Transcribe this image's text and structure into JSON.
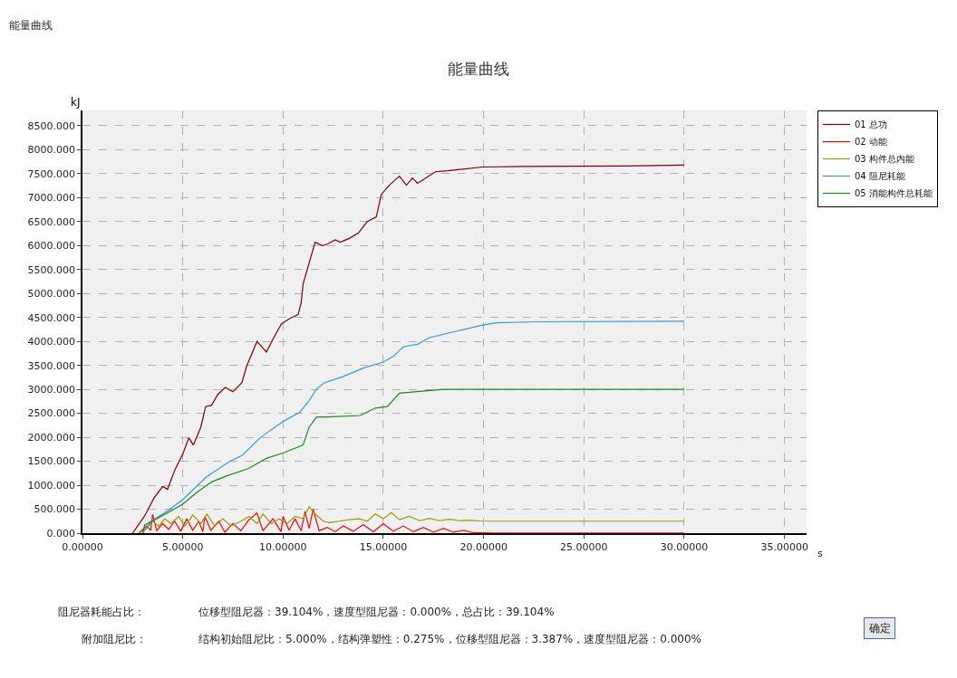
{
  "chart_data": {
    "type": "line",
    "title": "能量曲线",
    "xlabel": "s",
    "ylabel": "kJ",
    "xlim": [
      0,
      36.1
    ],
    "ylim": [
      0,
      8820
    ],
    "xticks": [
      {
        "value": 0,
        "label": "0.00000"
      },
      {
        "value": 5,
        "label": "5.00000"
      },
      {
        "value": 10,
        "label": "10.00000"
      },
      {
        "value": 15,
        "label": "15.00000"
      },
      {
        "value": 20,
        "label": "20.00000"
      },
      {
        "value": 25,
        "label": "25.00000"
      },
      {
        "value": 30,
        "label": "30.00000"
      },
      {
        "value": 35,
        "label": "35.00000"
      }
    ],
    "yticks": [
      {
        "value": 0,
        "label": "0.000"
      },
      {
        "value": 500,
        "label": "500.000"
      },
      {
        "value": 1000,
        "label": "1000.000"
      },
      {
        "value": 1500,
        "label": "1500.000"
      },
      {
        "value": 2000,
        "label": "2000.000"
      },
      {
        "value": 2500,
        "label": "2500.000"
      },
      {
        "value": 3000,
        "label": "3000.000"
      },
      {
        "value": 3500,
        "label": "3500.000"
      },
      {
        "value": 4000,
        "label": "4000.000"
      },
      {
        "value": 4500,
        "label": "4500.000"
      },
      {
        "value": 5000,
        "label": "5000.000"
      },
      {
        "value": 5500,
        "label": "5500.000"
      },
      {
        "value": 6000,
        "label": "6000.000"
      },
      {
        "value": 6500,
        "label": "6500.000"
      },
      {
        "value": 7000,
        "label": "7000.000"
      },
      {
        "value": 7500,
        "label": "7500.000"
      },
      {
        "value": 8000,
        "label": "8000.000"
      },
      {
        "value": 8500,
        "label": "8500.000"
      }
    ],
    "grid": true,
    "legend": "top right",
    "marker": "none",
    "line_style": "solid",
    "series": [
      {
        "name": "01 总功",
        "color": "#800000",
        "x": [
          2.5,
          3.1,
          3.56,
          4.0,
          4.24,
          4.6,
          5.0,
          5.3,
          5.53,
          5.9,
          6.14,
          6.44,
          6.74,
          7.12,
          7.5,
          7.95,
          8.18,
          8.7,
          9.17,
          9.55,
          9.92,
          10.38,
          10.75,
          10.9,
          11.0,
          11.6,
          11.95,
          12.2,
          12.6,
          12.85,
          13.3,
          13.75,
          14.2,
          14.65,
          14.9,
          15.3,
          15.8,
          16.15,
          16.45,
          16.7,
          17.6,
          18.2,
          19.95,
          22.0,
          27.0,
          30.0
        ],
        "values": [
          0,
          360,
          730,
          975,
          915,
          1315,
          1650,
          1990,
          1840,
          2210,
          2640,
          2670,
          2890,
          3040,
          2950,
          3140,
          3480,
          4000,
          3780,
          4090,
          4370,
          4490,
          4560,
          4800,
          5200,
          6070,
          6000,
          6030,
          6120,
          6070,
          6150,
          6260,
          6500,
          6600,
          7070,
          7260,
          7450,
          7260,
          7410,
          7300,
          7540,
          7560,
          7640,
          7650,
          7660,
          7680
        ]
      },
      {
        "name": "02 动能",
        "color": "#ff0000",
        "x": [
          2.8,
          3.2,
          3.4,
          3.5,
          3.7,
          4.0,
          4.3,
          4.6,
          4.9,
          5.2,
          5.5,
          5.8,
          6.0,
          6.1,
          6.4,
          6.8,
          7.1,
          7.5,
          7.9,
          8.3,
          8.7,
          9.0,
          9.5,
          9.9,
          10.0,
          10.3,
          10.6,
          10.9,
          11.1,
          11.3,
          11.5,
          11.8,
          12.2,
          12.6,
          13.0,
          13.5,
          14.0,
          14.5,
          15.0,
          15.5,
          16.0,
          16.5,
          17.0,
          17.5,
          18.0,
          18.5,
          19.0,
          19.5,
          20.5,
          30.0
        ],
        "values": [
          0,
          150,
          60,
          390,
          50,
          200,
          80,
          250,
          40,
          300,
          60,
          250,
          30,
          350,
          60,
          250,
          20,
          200,
          50,
          280,
          420,
          50,
          300,
          30,
          350,
          60,
          300,
          50,
          450,
          100,
          500,
          50,
          120,
          30,
          150,
          40,
          180,
          30,
          200,
          40,
          150,
          30,
          120,
          20,
          100,
          20,
          60,
          10,
          5,
          5
        ]
      },
      {
        "name": "03 构件总内能",
        "color": "#999900",
        "x": [
          2.8,
          3.2,
          3.5,
          3.8,
          4.1,
          4.4,
          4.8,
          5.1,
          5.5,
          5.9,
          6.2,
          6.6,
          7.0,
          7.4,
          7.9,
          8.3,
          8.7,
          9.0,
          9.4,
          9.8,
          10.2,
          10.6,
          11.0,
          11.3,
          11.6,
          12.0,
          12.3,
          12.8,
          13.3,
          13.8,
          14.2,
          14.6,
          15.0,
          15.4,
          15.8,
          16.3,
          16.8,
          17.3,
          17.8,
          18.3,
          18.8,
          19.3,
          19.8,
          20.6,
          30.0
        ],
        "values": [
          0,
          100,
          250,
          150,
          300,
          200,
          350,
          150,
          380,
          200,
          400,
          150,
          300,
          150,
          250,
          350,
          200,
          400,
          200,
          300,
          200,
          350,
          300,
          550,
          400,
          250,
          220,
          250,
          280,
          300,
          250,
          400,
          300,
          430,
          280,
          350,
          260,
          310,
          260,
          290,
          260,
          270,
          255,
          250,
          250
        ]
      },
      {
        "name": "04 阻尼耗能",
        "color": "#3399dd",
        "x": [
          3.0,
          3.4,
          4.3,
          5.0,
          6.14,
          7.35,
          7.95,
          8.86,
          10.0,
          10.83,
          11.3,
          11.67,
          12.05,
          12.95,
          14.0,
          15.0,
          15.5,
          16.0,
          16.7,
          17.3,
          18.8,
          19.95,
          20.6,
          22.6,
          30.0
        ],
        "values": [
          0,
          240,
          480,
          700,
          1160,
          1500,
          1620,
          1990,
          2330,
          2520,
          2765,
          3010,
          3135,
          3260,
          3445,
          3570,
          3690,
          3890,
          3940,
          4080,
          4230,
          4340,
          4390,
          4410,
          4420
        ]
      },
      {
        "name": "05 消能构件总耗能",
        "color": "#1a8a1a",
        "x": [
          3.0,
          3.1,
          3.7,
          5.0,
          5.7,
          6.44,
          7.35,
          8.26,
          9.17,
          10.08,
          11.0,
          11.3,
          11.67,
          12.2,
          13.85,
          14.6,
          15.2,
          15.8,
          16.55,
          18.0,
          20.6,
          30.0
        ],
        "values": [
          0,
          170,
          300,
          605,
          850,
          1070,
          1220,
          1345,
          1560,
          1685,
          1840,
          2210,
          2425,
          2425,
          2455,
          2610,
          2640,
          2920,
          2950,
          3000,
          3000,
          3000
        ]
      }
    ],
    "annotations": [
      "能量曲线",
      "阻尼器耗能占比：",
      "位移型阻尼器：39.104%，速度型阻尼器：0.000%，总占比：39.104%",
      "附加阻尼比：",
      "结构初始阻尼比：5.000%，结构弹塑性：0.275%，位移型阻尼器：3.387%，速度型阻尼器：0.000%",
      "确定"
    ]
  }
}
